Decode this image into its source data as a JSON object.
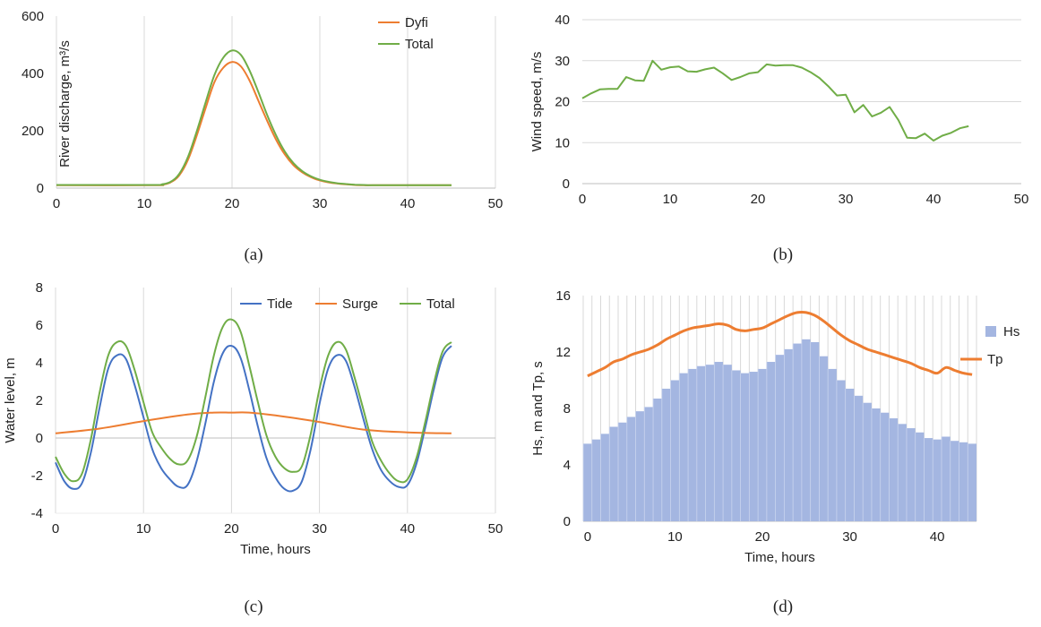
{
  "chart_data": [
    {
      "id": "a",
      "type": "line",
      "caption": "(a)",
      "title": "",
      "xlabel": "",
      "ylabel": "River discharge, m³/s",
      "xlim": [
        0,
        50
      ],
      "ylim": [
        0,
        600
      ],
      "xticks": [
        "0",
        "10",
        "20",
        "30",
        "40",
        "50"
      ],
      "yticks": [
        "0",
        "200",
        "400",
        "600"
      ],
      "grid": "vertical",
      "legend_position": "top-right",
      "legend_entries": [
        "Dyfi",
        "Total"
      ],
      "series": [
        {
          "name": "Dyfi",
          "color": "#ed7d31",
          "x": [
            0,
            11,
            12,
            13,
            14,
            15,
            16,
            17,
            18,
            19,
            20,
            21,
            22,
            23,
            24,
            25,
            26,
            27,
            28,
            29,
            30,
            31,
            32,
            33,
            34,
            35,
            36,
            40,
            45
          ],
          "y": [
            10,
            10,
            12,
            20,
            45,
            100,
            185,
            280,
            370,
            420,
            440,
            425,
            375,
            305,
            235,
            170,
            118,
            80,
            55,
            38,
            27,
            20,
            16,
            13,
            11,
            10,
            10,
            10,
            10
          ]
        },
        {
          "name": "Total",
          "color": "#70ad47",
          "x": [
            0,
            11,
            12,
            13,
            14,
            15,
            16,
            17,
            18,
            19,
            20,
            21,
            22,
            23,
            24,
            25,
            26,
            27,
            28,
            29,
            30,
            31,
            32,
            33,
            34,
            35,
            36,
            40,
            45
          ],
          "y": [
            11,
            11,
            13,
            22,
            50,
            110,
            200,
            300,
            395,
            455,
            480,
            465,
            410,
            335,
            255,
            185,
            128,
            87,
            59,
            41,
            29,
            22,
            17,
            14,
            12,
            11,
            10,
            10,
            10
          ]
        }
      ]
    },
    {
      "id": "b",
      "type": "line",
      "caption": "(b)",
      "title": "",
      "xlabel": "",
      "ylabel": "Wind speed, m/s",
      "xlim": [
        0,
        50
      ],
      "ylim": [
        0,
        40
      ],
      "xticks": [
        "0",
        "10",
        "20",
        "30",
        "40",
        "50"
      ],
      "yticks": [
        "0",
        "10",
        "20",
        "30",
        "40"
      ],
      "grid": "horizontal",
      "series": [
        {
          "name": "Wind speed",
          "color": "#70ad47",
          "x": [
            0,
            1,
            2,
            3,
            4,
            5,
            6,
            7,
            8,
            9,
            10,
            11,
            12,
            13,
            14,
            15,
            16,
            17,
            18,
            19,
            20,
            21,
            22,
            23,
            24,
            25,
            26,
            27,
            28,
            29,
            30,
            31,
            32,
            33,
            34,
            35,
            36,
            37,
            38,
            39,
            40,
            41,
            42,
            43,
            44
          ],
          "y": [
            20.8,
            22,
            23,
            23.1,
            23.1,
            26,
            25.2,
            25.1,
            30,
            27.8,
            28.4,
            28.6,
            27.4,
            27.3,
            27.9,
            28.3,
            26.9,
            25.3,
            26,
            26.9,
            27.2,
            29.1,
            28.8,
            28.9,
            28.9,
            28.3,
            27.2,
            25.8,
            23.8,
            21.5,
            21.7,
            17.4,
            19.2,
            16.4,
            17.3,
            18.7,
            15.5,
            11.2,
            11.1,
            12.2,
            10.5,
            11.7,
            12.4,
            13.5,
            14
          ]
        }
      ]
    },
    {
      "id": "c",
      "type": "line",
      "caption": "(c)",
      "title": "",
      "xlabel": "Time, hours",
      "ylabel": "Water level, m",
      "xlim": [
        0,
        50
      ],
      "ylim": [
        -4,
        8
      ],
      "xticks": [
        "0",
        "10",
        "20",
        "30",
        "40",
        "50"
      ],
      "yticks": [
        "-4",
        "-2",
        "0",
        "2",
        "4",
        "6",
        "8"
      ],
      "grid": "vertical",
      "legend_position": "top-right",
      "legend_entries": [
        "Tide",
        "Surge",
        "Total"
      ],
      "series": [
        {
          "name": "Tide",
          "color": "#4472c4",
          "x": [
            0,
            1,
            2,
            3,
            4,
            5,
            6,
            7,
            8,
            9,
            10,
            11,
            12,
            13,
            14,
            15,
            16,
            17,
            18,
            19,
            20,
            21,
            22,
            23,
            24,
            25,
            26,
            27,
            28,
            29,
            30,
            31,
            32,
            33,
            34,
            35,
            36,
            37,
            38,
            39,
            40,
            41,
            42,
            43,
            44,
            45
          ],
          "y": [
            -1.3,
            -2.3,
            -2.7,
            -2.4,
            -0.8,
            1.6,
            3.7,
            4.4,
            4.2,
            2.8,
            1.1,
            -0.6,
            -1.6,
            -2.2,
            -2.6,
            -2.5,
            -1.3,
            0.7,
            3.0,
            4.5,
            4.9,
            4.3,
            2.6,
            0.6,
            -1.1,
            -2.1,
            -2.7,
            -2.8,
            -2.3,
            -0.6,
            1.8,
            3.7,
            4.4,
            4.1,
            2.7,
            1.0,
            -0.6,
            -1.7,
            -2.3,
            -2.6,
            -2.5,
            -1.4,
            0.5,
            2.6,
            4.3,
            4.9
          ]
        },
        {
          "name": "Surge",
          "color": "#ed7d31",
          "x": [
            0,
            5,
            10,
            15,
            18,
            20,
            22,
            25,
            30,
            35,
            40,
            45
          ],
          "y": [
            0.25,
            0.5,
            0.9,
            1.25,
            1.35,
            1.35,
            1.35,
            1.2,
            0.85,
            0.45,
            0.3,
            0.25
          ]
        },
        {
          "name": "Total",
          "color": "#70ad47",
          "x": [
            0,
            1,
            2,
            3,
            4,
            5,
            6,
            7,
            8,
            9,
            10,
            11,
            12,
            13,
            14,
            15,
            16,
            17,
            18,
            19,
            20,
            21,
            22,
            23,
            24,
            25,
            26,
            27,
            28,
            29,
            30,
            31,
            32,
            33,
            34,
            35,
            36,
            37,
            38,
            39,
            40,
            41,
            42,
            43,
            44,
            45
          ],
          "y": [
            -1.0,
            -1.9,
            -2.3,
            -1.9,
            -0.1,
            2.4,
            4.4,
            5.1,
            4.9,
            3.6,
            1.9,
            0.3,
            -0.5,
            -1.1,
            -1.4,
            -1.2,
            0.0,
            2.1,
            4.4,
            5.9,
            6.3,
            5.7,
            3.9,
            1.9,
            0.1,
            -1.0,
            -1.6,
            -1.8,
            -1.5,
            0.2,
            2.6,
            4.4,
            5.1,
            4.7,
            3.2,
            1.5,
            -0.2,
            -1.2,
            -1.9,
            -2.3,
            -2.2,
            -1.1,
            0.8,
            2.9,
            4.6,
            5.1
          ]
        }
      ]
    },
    {
      "id": "d",
      "type": "bar",
      "caption": "(d)",
      "title": "",
      "xlabel": "Time, hours",
      "ylabel": "Hs, m and Tp, s",
      "xlim": [
        0,
        44
      ],
      "ylim": [
        0,
        16
      ],
      "xticks": [
        "0",
        "10",
        "20",
        "30",
        "40"
      ],
      "yticks": [
        "0",
        "4",
        "8",
        "12",
        "16"
      ],
      "grid": "vertical",
      "legend_position": "right",
      "legend_entries": [
        "Hs",
        "Tp"
      ],
      "series": [
        {
          "name": "Hs",
          "type": "bar",
          "color": "#a4b6e1",
          "x": [
            0,
            1,
            2,
            3,
            4,
            5,
            6,
            7,
            8,
            9,
            10,
            11,
            12,
            13,
            14,
            15,
            16,
            17,
            18,
            19,
            20,
            21,
            22,
            23,
            24,
            25,
            26,
            27,
            28,
            29,
            30,
            31,
            32,
            33,
            34,
            35,
            36,
            37,
            38,
            39,
            40,
            41,
            42,
            43,
            44
          ],
          "y": [
            5.5,
            5.8,
            6.2,
            6.7,
            7.0,
            7.4,
            7.8,
            8.1,
            8.7,
            9.4,
            10.0,
            10.5,
            10.8,
            11.0,
            11.1,
            11.3,
            11.1,
            10.7,
            10.5,
            10.6,
            10.8,
            11.3,
            11.8,
            12.2,
            12.6,
            12.9,
            12.7,
            11.7,
            10.8,
            10.0,
            9.4,
            8.9,
            8.4,
            8.0,
            7.7,
            7.3,
            6.9,
            6.6,
            6.3,
            5.9,
            5.8,
            6.0,
            5.7,
            5.6,
            5.5
          ]
        },
        {
          "name": "Tp",
          "type": "line",
          "color": "#ed7d31",
          "x": [
            0,
            1,
            2,
            3,
            4,
            5,
            6,
            7,
            8,
            9,
            10,
            11,
            12,
            13,
            14,
            15,
            16,
            17,
            18,
            19,
            20,
            21,
            22,
            23,
            24,
            25,
            26,
            27,
            28,
            29,
            30,
            31,
            32,
            33,
            34,
            35,
            36,
            37,
            38,
            39,
            40,
            41,
            42,
            43,
            44
          ],
          "y": [
            10.3,
            10.6,
            10.9,
            11.3,
            11.5,
            11.8,
            12.0,
            12.2,
            12.5,
            12.9,
            13.2,
            13.5,
            13.7,
            13.8,
            13.9,
            14.0,
            13.9,
            13.6,
            13.5,
            13.6,
            13.7,
            14.0,
            14.3,
            14.6,
            14.8,
            14.8,
            14.6,
            14.2,
            13.7,
            13.2,
            12.8,
            12.5,
            12.2,
            12.0,
            11.8,
            11.6,
            11.4,
            11.2,
            10.9,
            10.7,
            10.5,
            10.9,
            10.7,
            10.5,
            10.4
          ]
        }
      ]
    }
  ]
}
